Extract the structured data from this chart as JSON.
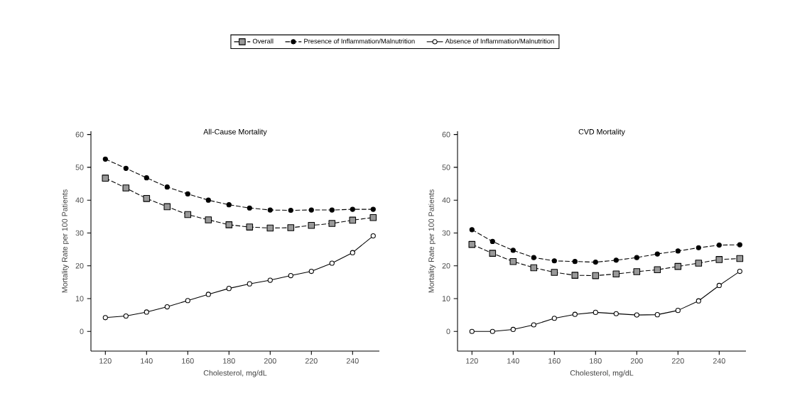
{
  "chart_data": [
    {
      "type": "line",
      "title": "All-Cause Mortality",
      "xlabel": "Cholesterol, mg/dL",
      "ylabel": "Mortality Rate per 100 Patients",
      "x": [
        120,
        130,
        140,
        150,
        160,
        170,
        180,
        190,
        200,
        210,
        220,
        230,
        240,
        250
      ],
      "xlim": [
        113,
        253
      ],
      "xticks": [
        120,
        140,
        160,
        180,
        200,
        220,
        240
      ],
      "ylim": [
        -6,
        61
      ],
      "yticks": [
        0,
        10,
        20,
        30,
        40,
        50,
        60
      ],
      "legend": "top",
      "grid": false,
      "series": [
        {
          "name": "Overall",
          "color": "#999999",
          "marker": "square",
          "line_style": "dashed",
          "values": [
            46.7,
            43.7,
            40.5,
            38.0,
            35.6,
            34.0,
            32.5,
            31.8,
            31.5,
            31.6,
            32.3,
            32.9,
            33.9,
            34.7
          ]
        },
        {
          "name": "Presence of Inflammation/Malnutrition",
          "color": "#000000",
          "marker": "circle",
          "line_style": "dashed",
          "values": [
            52.5,
            49.7,
            46.8,
            44.0,
            41.9,
            40.0,
            38.6,
            37.6,
            37.0,
            36.9,
            37.0,
            37.0,
            37.2,
            37.2
          ]
        },
        {
          "name": "Absence of Inflammation/Malnutrition",
          "color": "#ffffff",
          "marker": "circle",
          "line_style": "solid",
          "values": [
            4.2,
            4.7,
            5.9,
            7.5,
            9.4,
            11.3,
            13.1,
            14.5,
            15.6,
            17.0,
            18.3,
            20.8,
            24.0,
            29.1
          ]
        }
      ]
    },
    {
      "type": "line",
      "title": "CVD Mortality",
      "xlabel": "Cholesterol, mg/dL",
      "ylabel": "Mortality Rate per 100 Patients",
      "x": [
        120,
        130,
        140,
        150,
        160,
        170,
        180,
        190,
        200,
        210,
        220,
        230,
        240,
        250
      ],
      "xlim": [
        113,
        253
      ],
      "xticks": [
        120,
        140,
        160,
        180,
        200,
        220,
        240
      ],
      "ylim": [
        -6,
        61
      ],
      "yticks": [
        0,
        10,
        20,
        30,
        40,
        50,
        60
      ],
      "grid": false,
      "series": [
        {
          "color": "#999999",
          "marker": "square",
          "line_style": "dashed",
          "values": [
            26.5,
            23.8,
            21.3,
            19.4,
            18.0,
            17.1,
            17.0,
            17.5,
            18.2,
            18.8,
            19.8,
            20.8,
            21.9,
            22.2
          ]
        },
        {
          "color": "#000000",
          "marker": "circle",
          "line_style": "dashed",
          "values": [
            31.0,
            27.4,
            24.7,
            22.5,
            21.5,
            21.3,
            21.1,
            21.7,
            22.5,
            23.6,
            24.5,
            25.5,
            26.3,
            26.4
          ]
        },
        {
          "color": "#ffffff",
          "marker": "circle",
          "line_style": "solid",
          "values": [
            0,
            0,
            0.6,
            2.0,
            4.0,
            5.2,
            5.8,
            5.4,
            5.0,
            5.1,
            6.4,
            9.3,
            14.0,
            18.3
          ]
        }
      ]
    }
  ]
}
